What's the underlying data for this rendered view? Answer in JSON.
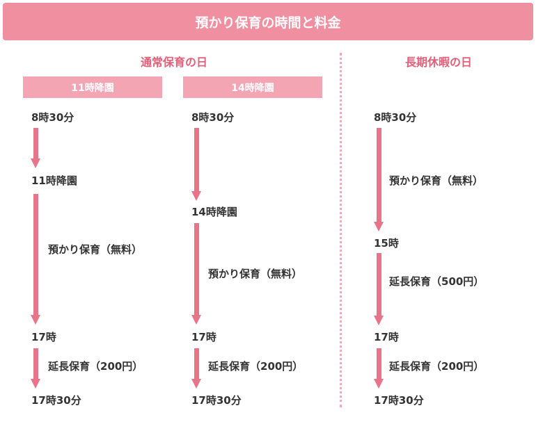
{
  "title": "預かり保育の時間と料金",
  "sections": {
    "regular": "通常保育の日",
    "holiday": "長期休暇の日"
  },
  "columns": [
    {
      "header": "11時降園",
      "labels": [
        "8時30分",
        "11時降園",
        "17時",
        "17時30分"
      ],
      "spans": [
        "預かり保育（無料）",
        "延長保育（200円）"
      ]
    },
    {
      "header": "14時降園",
      "labels": [
        "8時30分",
        "14時降園",
        "17時",
        "17時30分"
      ],
      "spans": [
        "預かり保育（無料）",
        "延長保育（200円）"
      ]
    },
    {
      "header": "",
      "labels": [
        "8時30分",
        "15時",
        "17時",
        "17時30分"
      ],
      "spans": [
        "預かり保育（無料）",
        "延長保育（500円）",
        "延長保育（200円）"
      ]
    }
  ],
  "colors": {
    "header_bg": "#ef8fa0",
    "column_header_bg": "#f3a5b4",
    "arrow": "#e8748a",
    "section_title": "#e0607a",
    "divider": "#f0a8b8"
  }
}
